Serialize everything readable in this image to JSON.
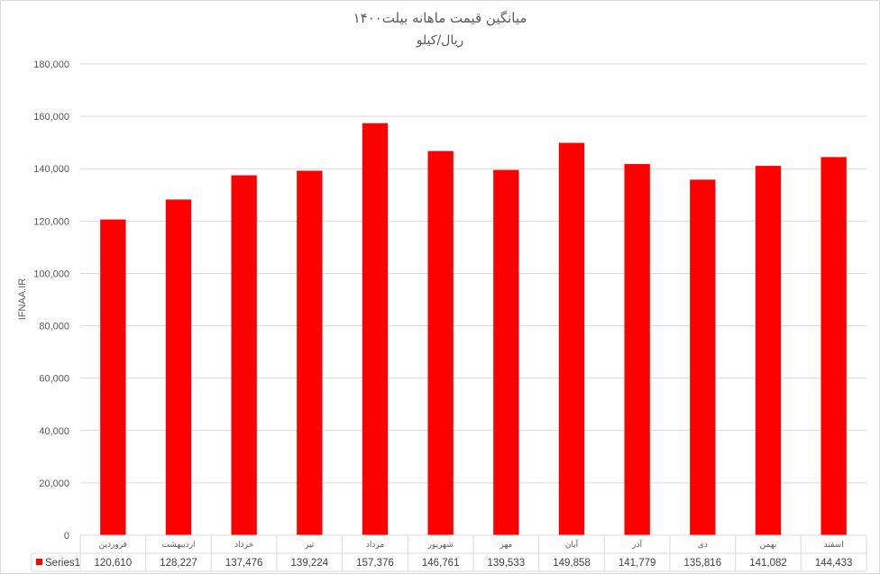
{
  "chart_data": {
    "type": "bar",
    "title": "میانگین قیمت ماهانه بیلت۱۴۰۰",
    "subtitle": "ریال/کیلو",
    "ylabel": "IFNAA.IR",
    "xlabel": "",
    "ylim": [
      0,
      180000
    ],
    "ytick_step": 20000,
    "grid": true,
    "legend": "data-table",
    "bar_color": "#ff0000",
    "categories": [
      "فروردین",
      "اردیبهشت",
      "خرداد",
      "تیر",
      "مرداد",
      "شهریور",
      "مهر",
      "آبان",
      "آذر",
      "دی",
      "بهمن",
      "اسفند"
    ],
    "series": [
      {
        "name": "Series1",
        "values": [
          120610,
          128227,
          137476,
          139224,
          157376,
          146761,
          139533,
          149858,
          141779,
          135816,
          141082,
          144433
        ]
      }
    ],
    "y_tick_labels": [
      "0",
      "20,000",
      "40,000",
      "60,000",
      "80,000",
      "100,000",
      "120,000",
      "140,000",
      "160,000",
      "180,000"
    ],
    "value_labels": [
      "120,610",
      "128,227",
      "137,476",
      "139,224",
      "157,376",
      "146,761",
      "139,533",
      "149,858",
      "141,779",
      "135,816",
      "141,082",
      "144,433"
    ]
  }
}
